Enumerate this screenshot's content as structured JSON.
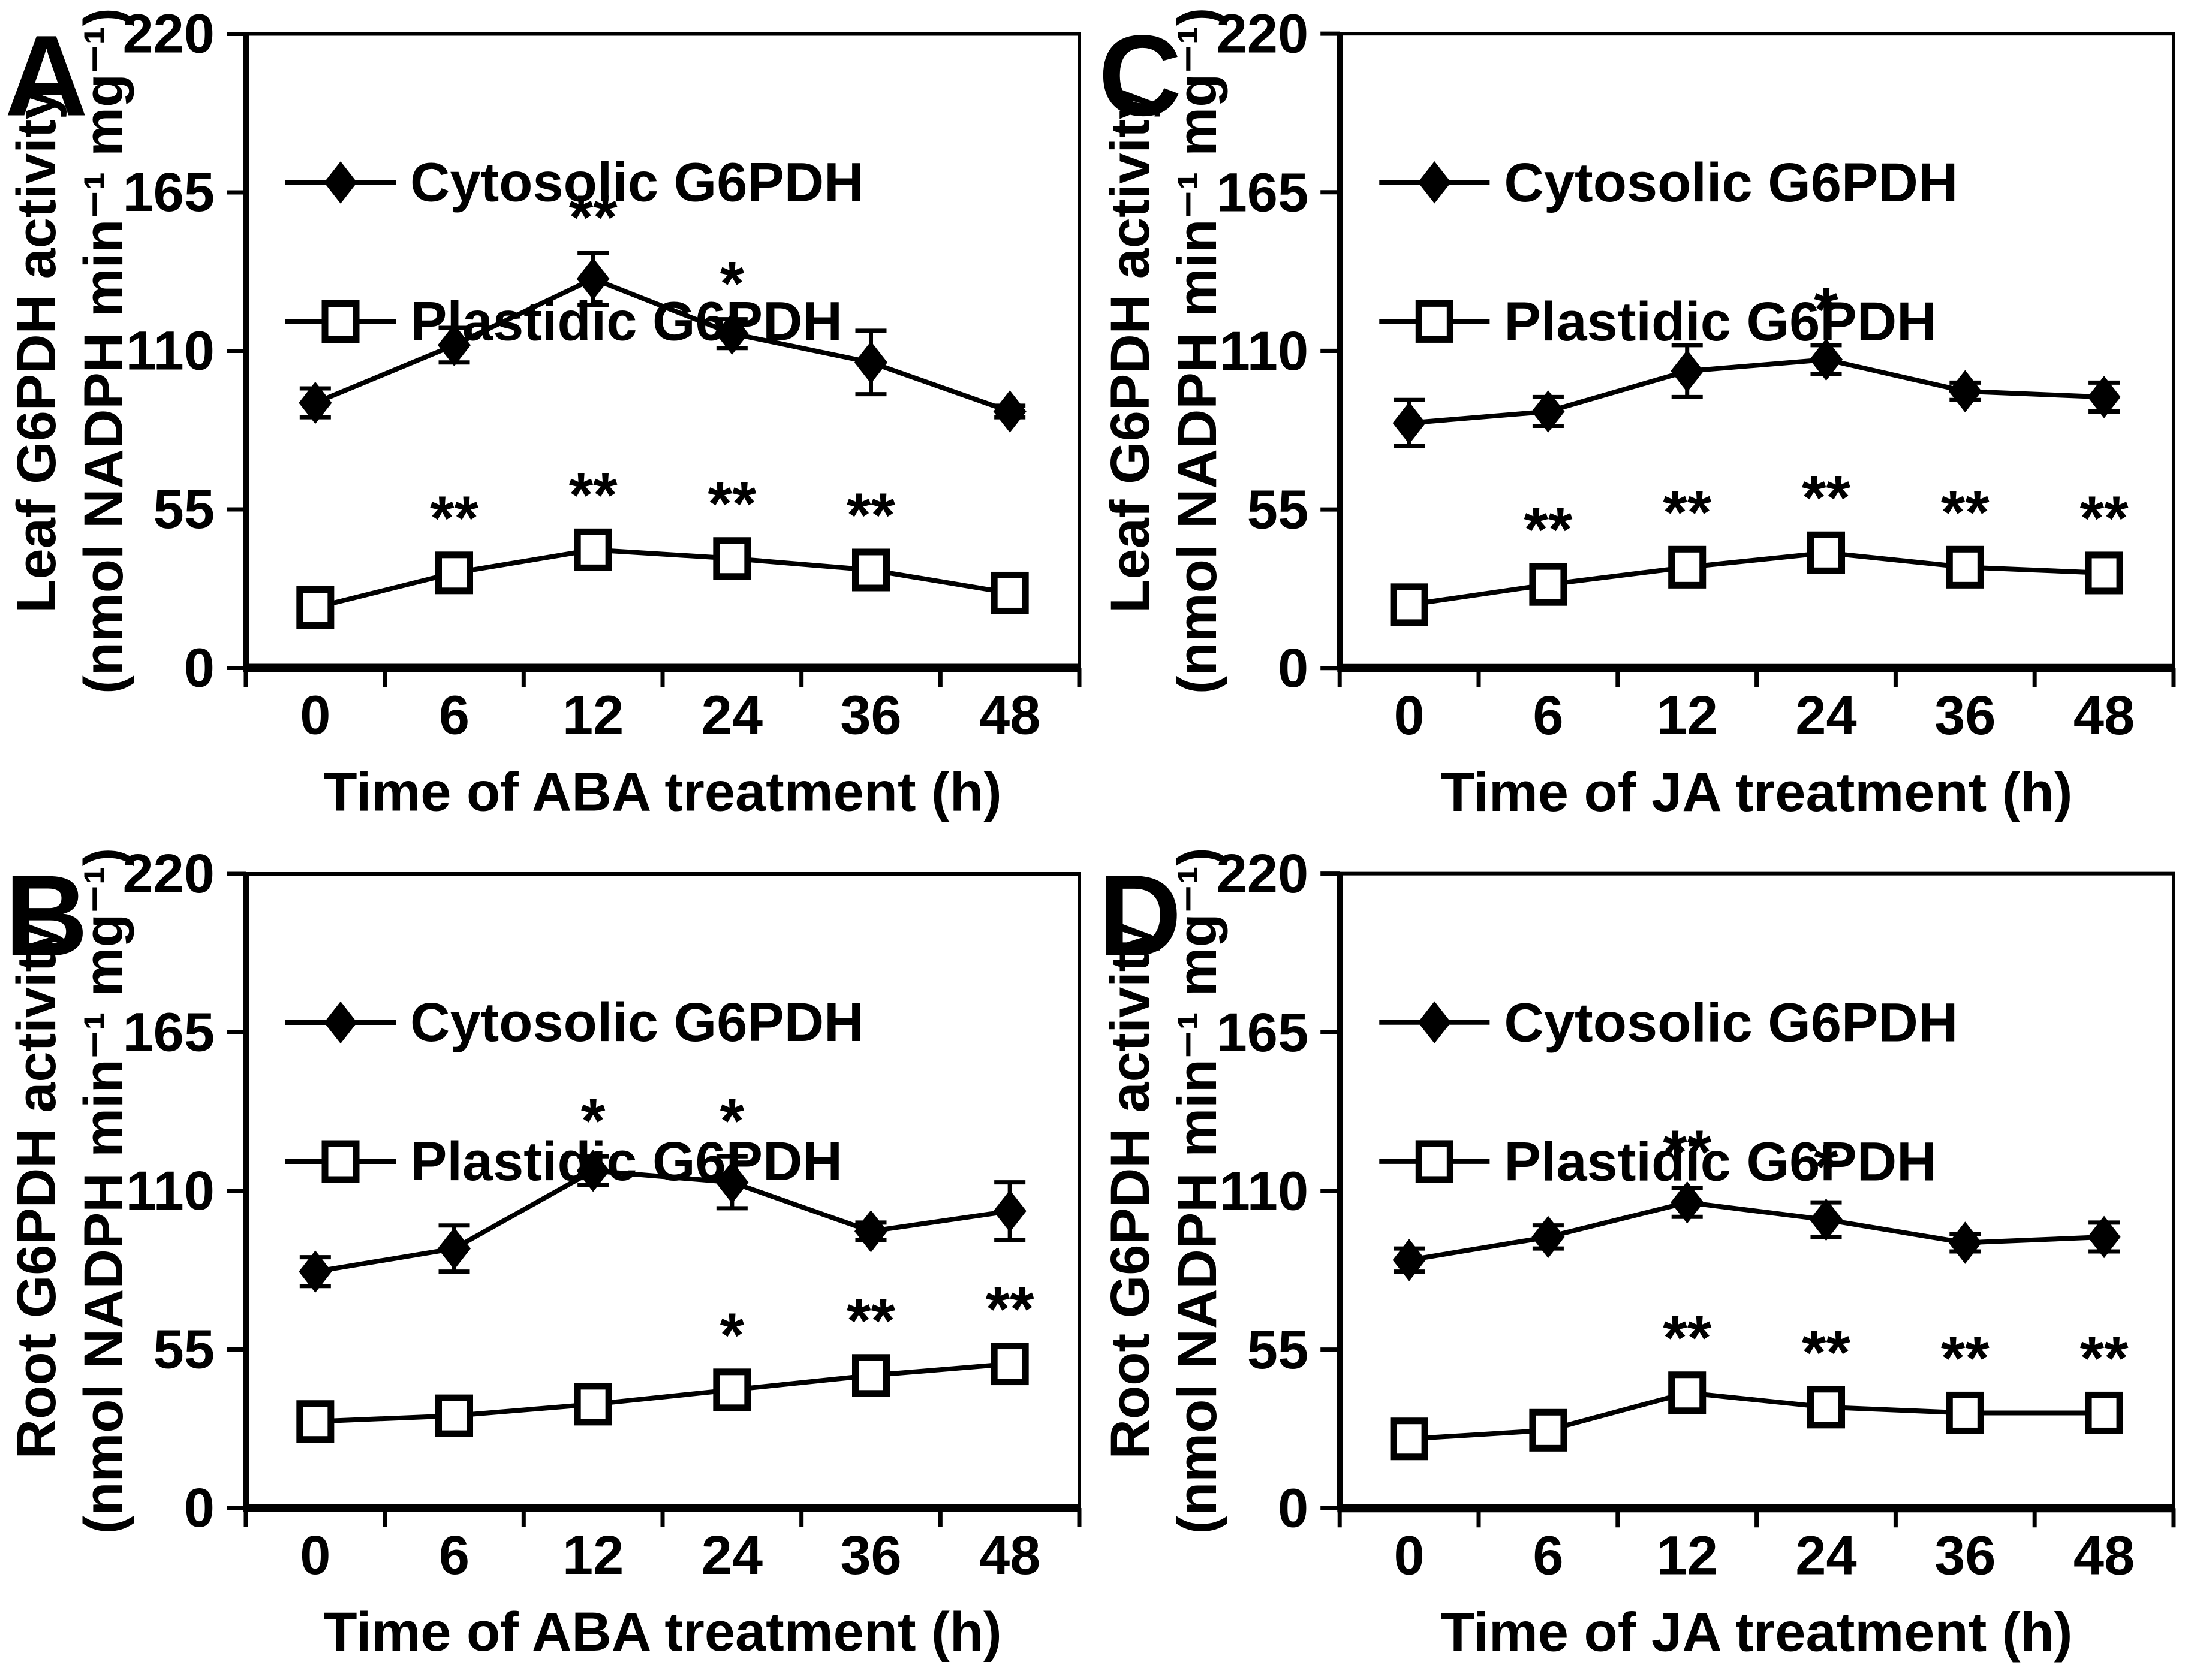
{
  "colors": {
    "foreground": "#000000",
    "background": "#ffffff"
  },
  "chart_data": [
    {
      "type": "line",
      "panel_label": "A",
      "ylabel_line1": "Leaf G6PDH activity",
      "ylabel_line2": "(nmol NADPH min⁻¹ mg⁻¹)",
      "xlabel": "Time of ABA treatment (h)",
      "categories": [
        "0",
        "6",
        "12",
        "24",
        "36",
        "48"
      ],
      "y_ticks": [
        0,
        55,
        110,
        165,
        220
      ],
      "ylim": [
        0,
        220
      ],
      "grid": false,
      "legend_position": "top-left-inside",
      "series": [
        {
          "name": "Cytosolic G6PDH",
          "marker": "filled-diamond",
          "values": [
            92,
            112,
            135,
            116,
            106,
            89
          ],
          "errors": [
            5,
            6,
            9,
            5,
            11,
            2
          ],
          "significance": [
            "",
            "",
            "**",
            "*",
            "",
            ""
          ]
        },
        {
          "name": "Plastidic G6PDH",
          "marker": "open-square",
          "values": [
            21,
            33,
            41,
            38,
            34,
            26
          ],
          "errors": [
            0,
            0,
            0,
            0,
            0,
            0
          ],
          "significance": [
            "",
            "**",
            "**",
            "**",
            "**",
            ""
          ]
        }
      ]
    },
    {
      "type": "line",
      "panel_label": "C",
      "ylabel_line1": "Leaf G6PDH activity",
      "ylabel_line2": "(nmol NADPH min⁻¹ mg⁻¹)",
      "xlabel": "Time of JA treatment (h)",
      "categories": [
        "0",
        "6",
        "12",
        "24",
        "36",
        "48"
      ],
      "y_ticks": [
        0,
        55,
        110,
        165,
        220
      ],
      "ylim": [
        0,
        220
      ],
      "grid": false,
      "legend_position": "top-left-inside",
      "series": [
        {
          "name": "Cytosolic G6PDH",
          "marker": "filled-diamond",
          "values": [
            85,
            89,
            103,
            107,
            96,
            94
          ],
          "errors": [
            8,
            5,
            9,
            5,
            3,
            5
          ],
          "significance": [
            "",
            "",
            "",
            "*",
            "",
            ""
          ]
        },
        {
          "name": "Plastidic G6PDH",
          "marker": "open-square",
          "values": [
            22,
            29,
            35,
            40,
            35,
            33
          ],
          "errors": [
            0,
            0,
            0,
            0,
            0,
            0
          ],
          "significance": [
            "",
            "**",
            "**",
            "**",
            "**",
            "**"
          ]
        }
      ]
    },
    {
      "type": "line",
      "panel_label": "B",
      "ylabel_line1": "Root G6PDH activity",
      "ylabel_line2": "(nmol NADPH min⁻¹ mg⁻¹)",
      "xlabel": "Time of ABA treatment (h)",
      "categories": [
        "0",
        "6",
        "12",
        "24",
        "36",
        "48"
      ],
      "y_ticks": [
        0,
        55,
        110,
        165,
        220
      ],
      "ylim": [
        0,
        220
      ],
      "grid": false,
      "legend_position": "top-left-inside",
      "series": [
        {
          "name": "Cytosolic G6PDH",
          "marker": "filled-diamond",
          "values": [
            82,
            90,
            117,
            113,
            96,
            103
          ],
          "errors": [
            5,
            8,
            5,
            9,
            3,
            10
          ],
          "significance": [
            "",
            "",
            "*",
            "*",
            "",
            ""
          ]
        },
        {
          "name": "Plastidic G6PDH",
          "marker": "open-square",
          "values": [
            30,
            32,
            36,
            41,
            46,
            50
          ],
          "errors": [
            0,
            0,
            0,
            0,
            0,
            0
          ],
          "significance": [
            "",
            "",
            "",
            "*",
            "**",
            "**"
          ]
        }
      ]
    },
    {
      "type": "line",
      "panel_label": "D",
      "ylabel_line1": "Root G6PDH activity",
      "ylabel_line2": "(nmol NADPH min⁻¹ mg⁻¹)",
      "xlabel": "Time of JA treatment (h)",
      "categories": [
        "0",
        "6",
        "12",
        "24",
        "36",
        "48"
      ],
      "y_ticks": [
        0,
        55,
        110,
        165,
        220
      ],
      "ylim": [
        0,
        220
      ],
      "grid": false,
      "legend_position": "top-left-inside",
      "series": [
        {
          "name": "Cytosolic G6PDH",
          "marker": "filled-diamond",
          "values": [
            86,
            94,
            106,
            100,
            92,
            94
          ],
          "errors": [
            4,
            4,
            5,
            6,
            3,
            5
          ],
          "significance": [
            "",
            "",
            "**",
            "*",
            "",
            ""
          ]
        },
        {
          "name": "Plastidic G6PDH",
          "marker": "open-square",
          "values": [
            24,
            27,
            40,
            35,
            33,
            33
          ],
          "errors": [
            0,
            0,
            0,
            0,
            0,
            0
          ],
          "significance": [
            "",
            "",
            "**",
            "**",
            "**",
            "**"
          ]
        }
      ]
    }
  ]
}
